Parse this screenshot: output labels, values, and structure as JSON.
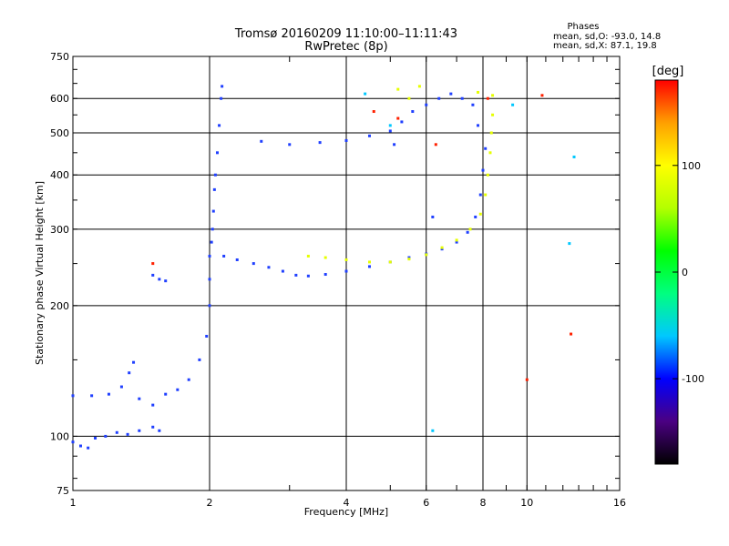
{
  "chart_data": {
    "type": "scatter",
    "title": "Tromsø 20160209 11:10:00–11:11:43",
    "subtitle": "RwPretec (8p)",
    "xlabel": "Frequency [MHz]",
    "ylabel": "Stationary phase Virtual Height [km]",
    "x_scale": "log",
    "y_scale": "log",
    "xlim": [
      1,
      16
    ],
    "ylim": [
      75,
      750
    ],
    "x_ticks": [
      1,
      2,
      4,
      6,
      8,
      10,
      16
    ],
    "y_ticks": [
      75,
      100,
      200,
      300,
      400,
      500,
      600,
      750
    ],
    "grid": true,
    "stats": {
      "heading": "Phases",
      "line_o": "mean, sd,O: -93.0, 14.8",
      "line_x": "mean, sd,X:  87.1, 19.8"
    },
    "colorbar": {
      "label": "[deg]",
      "ticks": [
        100,
        0,
        -100
      ],
      "range": [
        -180,
        180
      ],
      "colors": [
        "#000000",
        "#4b0082",
        "#0000ff",
        "#00c8ff",
        "#00ff80",
        "#00ff00",
        "#b4ff00",
        "#ffff00",
        "#ffa000",
        "#ff0000"
      ]
    },
    "series": [
      {
        "color": "#2040ff",
        "points": [
          [
            1.0,
            97
          ],
          [
            1.04,
            95
          ],
          [
            1.08,
            94
          ],
          [
            1.12,
            99
          ],
          [
            1.18,
            100
          ],
          [
            1.25,
            102
          ],
          [
            1.32,
            101
          ],
          [
            1.4,
            103
          ],
          [
            1.5,
            105
          ],
          [
            1.55,
            103
          ],
          [
            1.0,
            124
          ],
          [
            1.1,
            124
          ],
          [
            1.2,
            125
          ],
          [
            1.28,
            130
          ],
          [
            1.33,
            140
          ],
          [
            1.36,
            148
          ],
          [
            1.4,
            122
          ],
          [
            1.5,
            118
          ],
          [
            1.6,
            125
          ],
          [
            1.7,
            128
          ],
          [
            1.8,
            135
          ],
          [
            1.9,
            150
          ],
          [
            1.97,
            170
          ],
          [
            2.0,
            200
          ],
          [
            2.0,
            230
          ],
          [
            2.0,
            260
          ],
          [
            2.02,
            280
          ],
          [
            2.03,
            300
          ],
          [
            2.04,
            330
          ],
          [
            2.05,
            370
          ],
          [
            2.06,
            400
          ],
          [
            2.08,
            450
          ],
          [
            2.1,
            520
          ],
          [
            2.12,
            600
          ],
          [
            2.13,
            640
          ],
          [
            2.15,
            260
          ],
          [
            2.3,
            255
          ],
          [
            2.5,
            250
          ],
          [
            2.7,
            245
          ],
          [
            2.9,
            240
          ],
          [
            3.1,
            235
          ],
          [
            3.3,
            234
          ],
          [
            3.6,
            236
          ],
          [
            4.0,
            240
          ],
          [
            4.5,
            246
          ],
          [
            5.0,
            252
          ],
          [
            5.5,
            258
          ],
          [
            6.0,
            263
          ],
          [
            6.5,
            270
          ],
          [
            7.0,
            280
          ],
          [
            7.4,
            295
          ],
          [
            7.7,
            320
          ],
          [
            7.9,
            360
          ],
          [
            8.0,
            410
          ],
          [
            8.1,
            460
          ],
          [
            2.6,
            478
          ],
          [
            3.0,
            470
          ],
          [
            3.5,
            475
          ],
          [
            4.0,
            480
          ],
          [
            4.5,
            492
          ],
          [
            5.0,
            505
          ],
          [
            5.3,
            530
          ],
          [
            5.6,
            560
          ],
          [
            6.0,
            580
          ],
          [
            6.4,
            600
          ],
          [
            6.8,
            615
          ],
          [
            7.2,
            600
          ],
          [
            7.6,
            580
          ],
          [
            7.8,
            520
          ],
          [
            1.5,
            235
          ],
          [
            1.55,
            230
          ],
          [
            1.6,
            228
          ],
          [
            6.2,
            320
          ],
          [
            5.1,
            470
          ]
        ]
      },
      {
        "color": "#e6ff00",
        "points": [
          [
            3.3,
            260
          ],
          [
            3.6,
            258
          ],
          [
            4.0,
            255
          ],
          [
            4.5,
            252
          ],
          [
            5.0,
            252
          ],
          [
            5.5,
            256
          ],
          [
            6.0,
            262
          ],
          [
            6.5,
            272
          ],
          [
            7.0,
            283
          ],
          [
            7.5,
            300
          ],
          [
            7.9,
            325
          ],
          [
            8.1,
            360
          ],
          [
            8.2,
            400
          ],
          [
            8.3,
            450
          ],
          [
            8.35,
            500
          ],
          [
            8.4,
            550
          ],
          [
            5.2,
            630
          ],
          [
            5.5,
            600
          ],
          [
            5.8,
            640
          ],
          [
            7.8,
            620
          ],
          [
            8.4,
            610
          ]
        ]
      },
      {
        "color": "#ff2000",
        "points": [
          [
            4.6,
            560
          ],
          [
            5.2,
            540
          ],
          [
            6.3,
            470
          ],
          [
            8.2,
            600
          ],
          [
            10.0,
            135
          ],
          [
            12.5,
            172
          ],
          [
            10.8,
            610
          ],
          [
            1.5,
            250
          ]
        ]
      },
      {
        "color": "#00c8ff",
        "points": [
          [
            4.4,
            615
          ],
          [
            5.0,
            520
          ],
          [
            9.3,
            580
          ],
          [
            12.7,
            440
          ],
          [
            12.4,
            278
          ],
          [
            6.2,
            103
          ]
        ]
      }
    ]
  }
}
